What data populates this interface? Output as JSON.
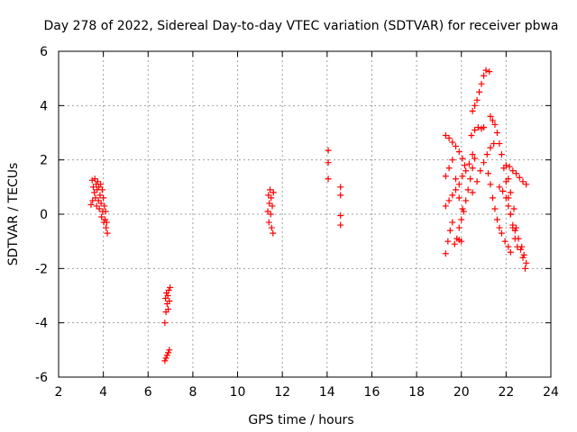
{
  "chart_data": {
    "type": "scatter",
    "title": "Day 278 of 2022, Sidereal Day-to-day VTEC variation (SDTVAR) for receiver pbwa",
    "xlabel": "GPS time / hours",
    "ylabel": "SDTVAR / TECUs",
    "xlim": [
      2,
      24
    ],
    "ylim": [
      -6,
      6
    ],
    "xticks": [
      2,
      4,
      6,
      8,
      10,
      12,
      14,
      16,
      18,
      20,
      22,
      24
    ],
    "yticks": [
      -6,
      -4,
      -2,
      0,
      2,
      4,
      6
    ],
    "grid": true,
    "marker": "+",
    "color": "#ff0000",
    "series": [
      {
        "points": [
          [
            3.45,
            0.35
          ],
          [
            3.5,
            1.25
          ],
          [
            3.52,
            0.5
          ],
          [
            3.55,
            1.0
          ],
          [
            3.6,
            0.8
          ],
          [
            3.62,
            1.3
          ],
          [
            3.65,
            0.6
          ],
          [
            3.68,
            1.1
          ],
          [
            3.7,
            0.3
          ],
          [
            3.72,
            0.9
          ],
          [
            3.75,
            1.2
          ],
          [
            3.78,
            0.5
          ],
          [
            3.8,
            1.0
          ],
          [
            3.82,
            0.2
          ],
          [
            3.85,
            0.7
          ],
          [
            3.88,
            1.1
          ],
          [
            3.9,
            0.4
          ],
          [
            3.92,
            -0.1
          ],
          [
            3.95,
            0.9
          ],
          [
            3.97,
            0.1
          ],
          [
            4.0,
            0.6
          ],
          [
            4.02,
            -0.3
          ],
          [
            4.05,
            0.3
          ],
          [
            4.08,
            -0.2
          ],
          [
            4.1,
            0.1
          ],
          [
            4.12,
            -0.5
          ],
          [
            4.15,
            -0.3
          ],
          [
            4.18,
            -0.7
          ],
          [
            6.75,
            -4.0
          ],
          [
            6.78,
            -3.1
          ],
          [
            6.8,
            -3.6
          ],
          [
            6.82,
            -2.9
          ],
          [
            6.85,
            -3.3
          ],
          [
            6.88,
            -3.0
          ],
          [
            6.9,
            -3.5
          ],
          [
            6.92,
            -2.8
          ],
          [
            6.95,
            -3.2
          ],
          [
            6.98,
            -2.7
          ],
          [
            6.75,
            -5.4
          ],
          [
            6.8,
            -5.3
          ],
          [
            6.85,
            -5.2
          ],
          [
            6.9,
            -5.1
          ],
          [
            6.95,
            -5.0
          ],
          [
            11.35,
            0.1
          ],
          [
            11.38,
            0.7
          ],
          [
            11.4,
            -0.3
          ],
          [
            11.42,
            0.4
          ],
          [
            11.45,
            0.9
          ],
          [
            11.48,
            0.0
          ],
          [
            11.5,
            0.6
          ],
          [
            11.52,
            -0.5
          ],
          [
            11.55,
            0.3
          ],
          [
            11.58,
            -0.7
          ],
          [
            11.6,
            0.8
          ],
          [
            14.05,
            2.35
          ],
          [
            14.05,
            1.9
          ],
          [
            14.05,
            1.3
          ],
          [
            14.6,
            1.0
          ],
          [
            14.6,
            0.7
          ],
          [
            14.6,
            -0.05
          ],
          [
            14.6,
            -0.4
          ],
          [
            19.3,
            2.9
          ],
          [
            19.45,
            2.8
          ],
          [
            19.6,
            2.65
          ],
          [
            19.75,
            2.5
          ],
          [
            19.9,
            2.3
          ],
          [
            20.05,
            2.05
          ],
          [
            20.15,
            1.8
          ],
          [
            19.3,
            1.4
          ],
          [
            19.45,
            1.7
          ],
          [
            19.6,
            2.0
          ],
          [
            19.75,
            1.3
          ],
          [
            19.9,
            0.6
          ],
          [
            20.05,
            0.2
          ],
          [
            19.3,
            -1.45
          ],
          [
            19.4,
            -1.0
          ],
          [
            19.5,
            -0.6
          ],
          [
            19.6,
            -0.3
          ],
          [
            19.7,
            -1.1
          ],
          [
            19.8,
            -0.9
          ],
          [
            19.9,
            -0.95
          ],
          [
            20.0,
            -1.0
          ],
          [
            19.3,
            0.3
          ],
          [
            19.45,
            0.5
          ],
          [
            19.6,
            0.7
          ],
          [
            19.75,
            0.9
          ],
          [
            19.9,
            1.1
          ],
          [
            20.05,
            1.4
          ],
          [
            20.2,
            1.6
          ],
          [
            20.35,
            1.85
          ],
          [
            20.5,
            2.2
          ],
          [
            19.9,
            -0.5
          ],
          [
            20.0,
            -0.2
          ],
          [
            20.1,
            0.1
          ],
          [
            20.2,
            0.5
          ],
          [
            20.3,
            0.9
          ],
          [
            20.4,
            1.3
          ],
          [
            20.5,
            1.7
          ],
          [
            20.6,
            2.05
          ],
          [
            20.5,
            3.8
          ],
          [
            20.6,
            4.0
          ],
          [
            20.7,
            4.2
          ],
          [
            20.8,
            4.5
          ],
          [
            20.9,
            4.8
          ],
          [
            21.0,
            5.1
          ],
          [
            21.1,
            5.3
          ],
          [
            21.25,
            5.25
          ],
          [
            20.45,
            2.9
          ],
          [
            20.6,
            3.1
          ],
          [
            20.75,
            3.2
          ],
          [
            20.9,
            3.15
          ],
          [
            21.0,
            3.2
          ],
          [
            20.5,
            0.8
          ],
          [
            20.7,
            1.2
          ],
          [
            20.85,
            1.6
          ],
          [
            21.0,
            1.9
          ],
          [
            21.15,
            2.2
          ],
          [
            21.3,
            2.45
          ],
          [
            21.45,
            2.6
          ],
          [
            21.3,
            3.6
          ],
          [
            21.4,
            3.45
          ],
          [
            21.5,
            3.3
          ],
          [
            21.6,
            3.0
          ],
          [
            21.7,
            2.6
          ],
          [
            21.8,
            2.2
          ],
          [
            21.9,
            1.7
          ],
          [
            22.0,
            1.2
          ],
          [
            22.1,
            0.6
          ],
          [
            22.2,
            0.0
          ],
          [
            22.3,
            -0.5
          ],
          [
            22.4,
            -0.9
          ],
          [
            22.5,
            -1.2
          ],
          [
            21.2,
            1.5
          ],
          [
            21.3,
            1.1
          ],
          [
            21.4,
            0.6
          ],
          [
            21.5,
            0.2
          ],
          [
            21.6,
            -0.2
          ],
          [
            21.7,
            -0.5
          ],
          [
            21.8,
            -0.7
          ],
          [
            21.95,
            -1.0
          ],
          [
            22.1,
            -1.2
          ],
          [
            22.2,
            -1.4
          ],
          [
            21.7,
            1.0
          ],
          [
            21.85,
            0.85
          ],
          [
            22.0,
            0.6
          ],
          [
            22.1,
            0.3
          ],
          [
            22.2,
            0.0
          ],
          [
            22.3,
            -0.4
          ],
          [
            22.4,
            -0.6
          ],
          [
            22.0,
            1.8
          ],
          [
            22.15,
            1.75
          ],
          [
            22.3,
            1.6
          ],
          [
            22.45,
            1.5
          ],
          [
            22.6,
            1.35
          ],
          [
            22.75,
            1.2
          ],
          [
            22.9,
            1.1
          ],
          [
            22.1,
            1.3
          ],
          [
            22.2,
            0.8
          ],
          [
            22.35,
            0.2
          ],
          [
            22.45,
            -0.5
          ],
          [
            22.55,
            -0.9
          ],
          [
            22.65,
            -1.3
          ],
          [
            22.75,
            -1.6
          ],
          [
            22.85,
            -2.0
          ],
          [
            22.7,
            -1.2
          ],
          [
            22.8,
            -1.5
          ],
          [
            22.9,
            -1.8
          ]
        ]
      }
    ]
  }
}
